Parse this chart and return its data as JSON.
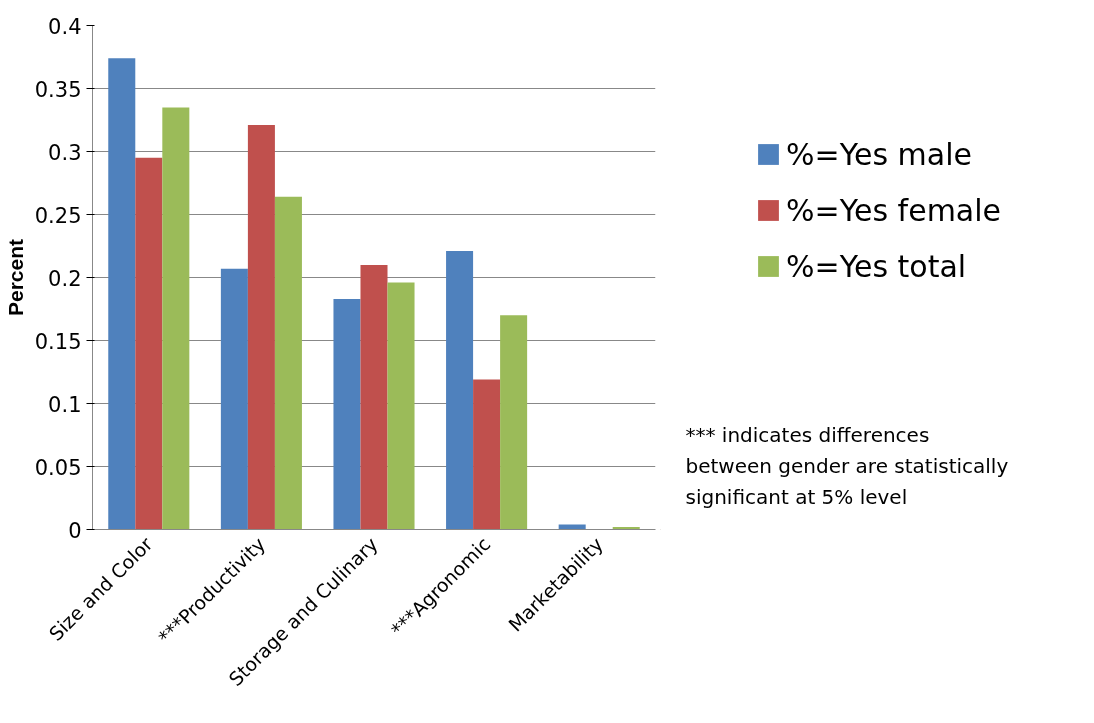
{
  "chart_data": {
    "type": "bar",
    "ylabel": "Percent",
    "categories": [
      "Size and Color",
      "***Productivity",
      "Storage and Culinary",
      "***Agronomic",
      "Marketability"
    ],
    "series": [
      {
        "name": "%=Yes male",
        "color": "#4f81bd",
        "values": [
          0.374,
          0.207,
          0.183,
          0.221,
          0.004
        ]
      },
      {
        "name": "%=Yes female",
        "color": "#c0504d",
        "values": [
          0.295,
          0.321,
          0.21,
          0.119,
          0
        ]
      },
      {
        "name": "%=Yes total",
        "color": "#9bbb59",
        "values": [
          0.335,
          0.264,
          0.196,
          0.17,
          0.002
        ]
      }
    ],
    "ylim": [
      0,
      0.4
    ],
    "yticks": [
      0,
      0.05,
      0.1,
      0.15,
      0.2,
      0.25,
      0.3,
      0.35,
      0.4
    ],
    "grid": "y",
    "legend": "right",
    "annotations": [
      "*** indicates differences\nbetween gender are statistically\nsignificant at 5% level"
    ]
  }
}
